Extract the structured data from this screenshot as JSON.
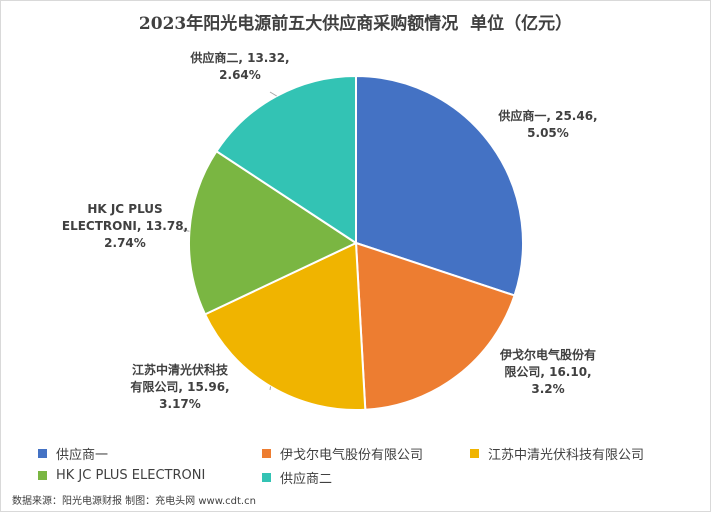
{
  "chart_data": {
    "type": "pie",
    "title": "2023年阳光电源前五大供应商采购额情况  单位（亿元）",
    "slices": [
      {
        "name": "供应商一",
        "value": 25.46,
        "share": "5.05%",
        "label_lines": [
          "供应商一, 25.46,",
          "5.05%"
        ],
        "color": "#4472C4"
      },
      {
        "name": "伊戈尔电气股份有限公司",
        "value": 16.1,
        "share": "3.2%",
        "label_lines": [
          "伊戈尔电气股份有",
          "限公司, 16.10,",
          "3.2%"
        ],
        "color": "#ED7D31"
      },
      {
        "name": "江苏中清光伏科技有限公司",
        "value": 15.96,
        "share": "3.17%",
        "label_lines": [
          "江苏中清光伏科技",
          "有限公司, 15.96,",
          "3.17%"
        ],
        "color": "#F0B400"
      },
      {
        "name": "HK JC PLUS ELECTRONI",
        "value": 13.78,
        "share": "2.74%",
        "label_lines": [
          "HK JC PLUS",
          "ELECTRONI, 13.78,",
          "2.74%"
        ],
        "color": "#7AB642"
      },
      {
        "name": "供应商二",
        "value": 13.32,
        "share": "2.64%",
        "label_lines": [
          "供应商二, 13.32,",
          "2.64%"
        ],
        "color": "#33C3B4"
      }
    ],
    "legend_position": "bottom"
  },
  "footer": "数据来源：阳光电源财报  制图：充电头网 www.cdt.cn"
}
